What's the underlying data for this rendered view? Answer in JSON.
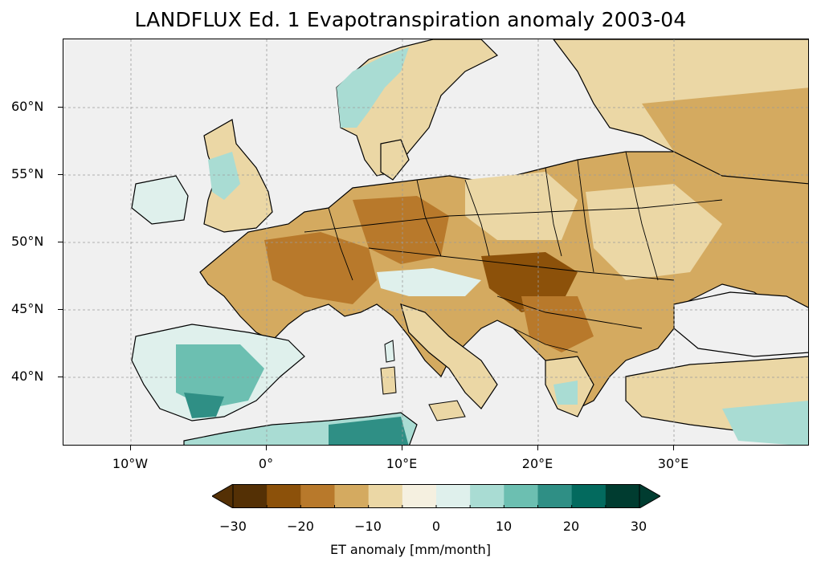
{
  "title": "LANDFLUX Ed. 1 Evapotranspiration anomaly 2003-04",
  "map": {
    "region": "Europe",
    "ocean_color": "#f0f0f0",
    "lat_ticks": [
      "60°N",
      "55°N",
      "50°N",
      "45°N",
      "40°N"
    ],
    "lon_ticks": [
      "10°W",
      "0°",
      "10°E",
      "20°E",
      "30°E"
    ],
    "gridlines": true
  },
  "colorbar": {
    "label": "ET anomaly [mm/month]",
    "ticks": [
      "−30",
      "−20",
      "−10",
      "0",
      "10",
      "20",
      "30"
    ],
    "range": [
      -30,
      30
    ],
    "extend": "both",
    "colors": [
      "#543005",
      "#8c510a",
      "#b8792b",
      "#d4aa60",
      "#ebd7a5",
      "#f5f0e0",
      "#dff0ec",
      "#a9dcd3",
      "#6cbfb1",
      "#2f8f85",
      "#036a5e",
      "#003c30"
    ]
  },
  "palette": {
    "dry_strong": "#8c510a",
    "dry_medium": "#b8792b",
    "dry_light": "#d4aa60",
    "dry_pale": "#ebd7a5",
    "neutral": "#f5f0e0",
    "wet_pale": "#dff0ec",
    "wet_light": "#a9dcd3",
    "wet_medium": "#6cbfb1",
    "wet_strong": "#2f8f85"
  }
}
